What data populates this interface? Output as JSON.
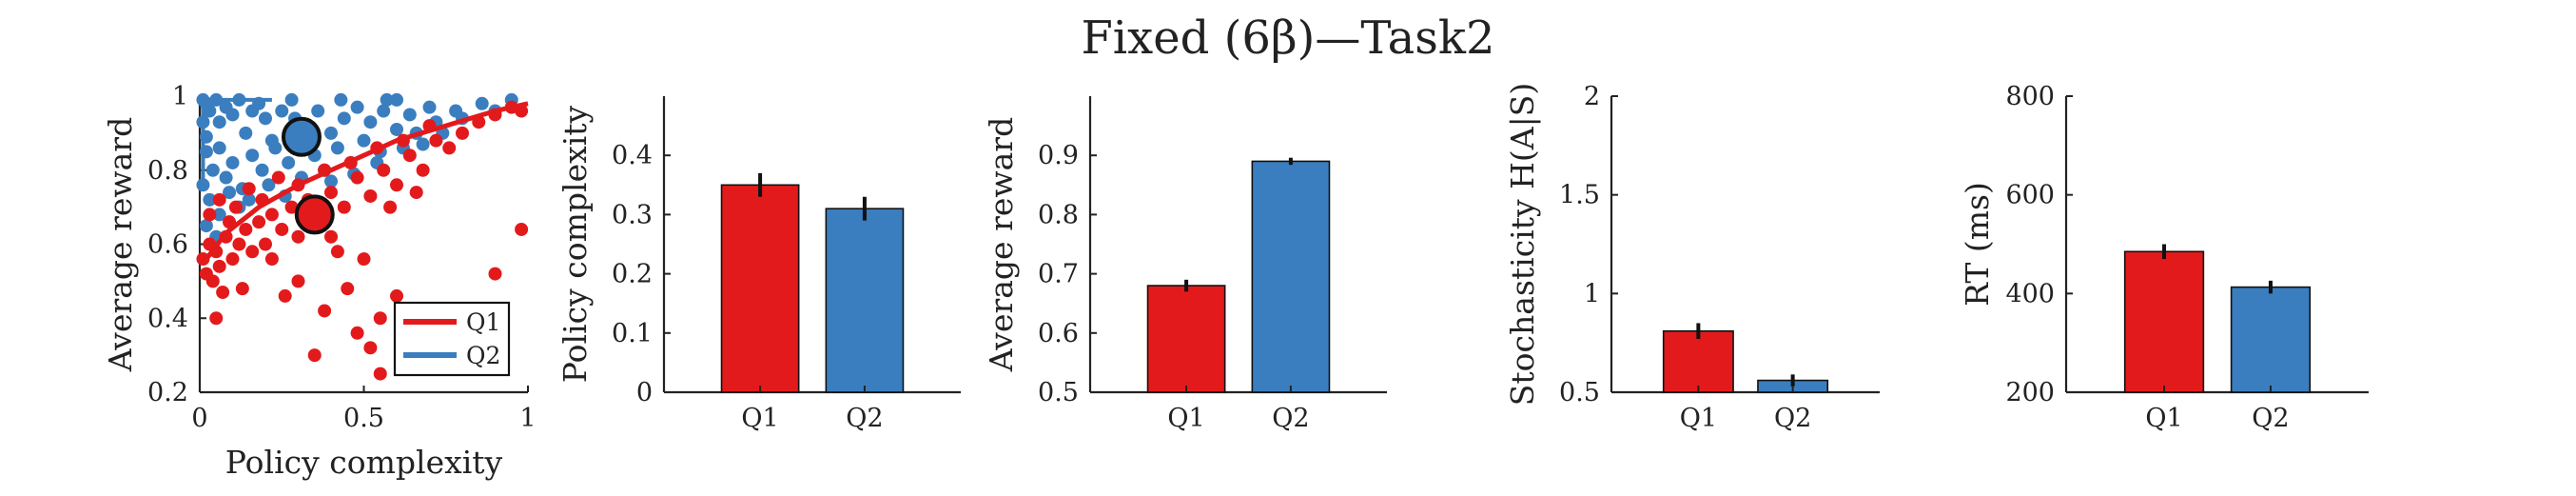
{
  "figure": {
    "title": "Fixed (6β)—Task2"
  },
  "colors": {
    "Q1": "#e31a1c",
    "Q2": "#3a7ebf"
  },
  "chart_data": [
    {
      "type": "scatter",
      "xlabel": "Policy complexity",
      "ylabel": "Average reward",
      "xlim": [
        0,
        1
      ],
      "ylim": [
        0.2,
        1
      ],
      "xticks": [
        "0",
        "0.5",
        "1"
      ],
      "yticks": [
        "0.2",
        "0.4",
        "0.6",
        "0.8",
        "1"
      ],
      "legend": {
        "position": "bottom-right",
        "entries": [
          "Q1",
          "Q2"
        ]
      },
      "series": [
        {
          "name": "Q2",
          "points": [
            [
              0.01,
              0.99
            ],
            [
              0.02,
              0.98
            ],
            [
              0.03,
              0.96
            ],
            [
              0.05,
              0.99
            ],
            [
              0.06,
              0.93
            ],
            [
              0.08,
              0.97
            ],
            [
              0.1,
              0.95
            ],
            [
              0.12,
              0.99
            ],
            [
              0.14,
              0.9
            ],
            [
              0.16,
              0.96
            ],
            [
              0.18,
              0.98
            ],
            [
              0.2,
              0.94
            ],
            [
              0.22,
              0.88
            ],
            [
              0.25,
              0.96
            ],
            [
              0.28,
              0.99
            ],
            [
              0.32,
              0.92
            ],
            [
              0.36,
              0.96
            ],
            [
              0.4,
              0.9
            ],
            [
              0.44,
              0.94
            ],
            [
              0.48,
              0.97
            ],
            [
              0.52,
              0.93
            ],
            [
              0.56,
              0.96
            ],
            [
              0.6,
              0.99
            ],
            [
              0.64,
              0.95
            ],
            [
              0.7,
              0.97
            ],
            [
              0.78,
              0.96
            ],
            [
              0.86,
              0.98
            ],
            [
              0.95,
              0.99
            ],
            [
              0.02,
              0.85
            ],
            [
              0.04,
              0.8
            ],
            [
              0.06,
              0.86
            ],
            [
              0.08,
              0.78
            ],
            [
              0.1,
              0.82
            ],
            [
              0.13,
              0.75
            ],
            [
              0.16,
              0.84
            ],
            [
              0.19,
              0.8
            ],
            [
              0.23,
              0.86
            ],
            [
              0.27,
              0.82
            ],
            [
              0.31,
              0.78
            ],
            [
              0.35,
              0.84
            ],
            [
              0.38,
              0.8
            ],
            [
              0.42,
              0.86
            ],
            [
              0.46,
              0.82
            ],
            [
              0.5,
              0.88
            ],
            [
              0.55,
              0.85
            ],
            [
              0.6,
              0.91
            ],
            [
              0.66,
              0.9
            ],
            [
              0.72,
              0.93
            ],
            [
              0.03,
              0.72
            ],
            [
              0.06,
              0.68
            ],
            [
              0.09,
              0.74
            ],
            [
              0.12,
              0.7
            ],
            [
              0.02,
              0.65
            ],
            [
              0.05,
              0.62
            ],
            [
              0.15,
              0.72
            ],
            [
              0.21,
              0.76
            ],
            [
              0.26,
              0.73
            ],
            [
              0.33,
              0.7
            ],
            [
              0.4,
              0.77
            ],
            [
              0.47,
              0.79
            ],
            [
              0.54,
              0.82
            ],
            [
              0.62,
              0.86
            ],
            [
              0.68,
              0.87
            ],
            [
              0.74,
              0.9
            ],
            [
              0.8,
              0.94
            ],
            [
              0.9,
              0.96
            ],
            [
              0.01,
              0.93
            ],
            [
              0.02,
              0.89
            ],
            [
              0.01,
              0.76
            ],
            [
              0.29,
              0.94
            ],
            [
              0.43,
              0.99
            ],
            [
              0.57,
              0.99
            ]
          ],
          "mean": [
            0.31,
            0.89
          ]
        },
        {
          "name": "Q1",
          "points": [
            [
              0.01,
              0.56
            ],
            [
              0.02,
              0.52
            ],
            [
              0.03,
              0.6
            ],
            [
              0.04,
              0.5
            ],
            [
              0.05,
              0.58
            ],
            [
              0.06,
              0.54
            ],
            [
              0.07,
              0.47
            ],
            [
              0.08,
              0.62
            ],
            [
              0.1,
              0.56
            ],
            [
              0.12,
              0.6
            ],
            [
              0.14,
              0.64
            ],
            [
              0.16,
              0.58
            ],
            [
              0.18,
              0.66
            ],
            [
              0.2,
              0.6
            ],
            [
              0.22,
              0.68
            ],
            [
              0.25,
              0.64
            ],
            [
              0.28,
              0.7
            ],
            [
              0.3,
              0.62
            ],
            [
              0.33,
              0.72
            ],
            [
              0.36,
              0.66
            ],
            [
              0.4,
              0.74
            ],
            [
              0.44,
              0.7
            ],
            [
              0.48,
              0.78
            ],
            [
              0.52,
              0.73
            ],
            [
              0.56,
              0.8
            ],
            [
              0.6,
              0.76
            ],
            [
              0.64,
              0.84
            ],
            [
              0.68,
              0.8
            ],
            [
              0.72,
              0.88
            ],
            [
              0.76,
              0.86
            ],
            [
              0.8,
              0.9
            ],
            [
              0.85,
              0.93
            ],
            [
              0.9,
              0.95
            ],
            [
              0.95,
              0.97
            ],
            [
              0.98,
              0.96
            ],
            [
              0.03,
              0.68
            ],
            [
              0.06,
              0.72
            ],
            [
              0.09,
              0.66
            ],
            [
              0.11,
              0.7
            ],
            [
              0.15,
              0.75
            ],
            [
              0.19,
              0.72
            ],
            [
              0.24,
              0.78
            ],
            [
              0.3,
              0.76
            ],
            [
              0.38,
              0.8
            ],
            [
              0.46,
              0.82
            ],
            [
              0.54,
              0.86
            ],
            [
              0.62,
              0.88
            ],
            [
              0.7,
              0.92
            ],
            [
              0.05,
              0.4
            ],
            [
              0.3,
              0.5
            ],
            [
              0.38,
              0.42
            ],
            [
              0.42,
              0.58
            ],
            [
              0.45,
              0.48
            ],
            [
              0.5,
              0.56
            ],
            [
              0.55,
              0.4
            ],
            [
              0.6,
              0.46
            ],
            [
              0.48,
              0.36
            ],
            [
              0.52,
              0.32
            ],
            [
              0.35,
              0.3
            ],
            [
              0.55,
              0.25
            ],
            [
              0.9,
              0.52
            ],
            [
              0.98,
              0.64
            ],
            [
              0.13,
              0.48
            ],
            [
              0.22,
              0.56
            ],
            [
              0.26,
              0.46
            ],
            [
              0.4,
              0.62
            ],
            [
              0.58,
              0.7
            ],
            [
              0.66,
              0.74
            ]
          ],
          "curve": [
            [
              0.02,
              0.56
            ],
            [
              0.08,
              0.63
            ],
            [
              0.18,
              0.7
            ],
            [
              0.3,
              0.76
            ],
            [
              0.45,
              0.82
            ],
            [
              0.6,
              0.88
            ],
            [
              0.75,
              0.92
            ],
            [
              0.9,
              0.96
            ],
            [
              1.0,
              0.98
            ]
          ],
          "mean": [
            0.35,
            0.68
          ]
        }
      ]
    },
    {
      "type": "bar",
      "ylabel": "Policy complexity",
      "categories": [
        "Q1",
        "Q2"
      ],
      "values": [
        0.35,
        0.31
      ],
      "errors": [
        0.02,
        0.02
      ],
      "ylim": [
        0,
        0.5
      ],
      "yticks": [
        "0",
        "0.1",
        "0.2",
        "0.3",
        "0.4"
      ]
    },
    {
      "type": "bar",
      "ylabel": "Average reward",
      "categories": [
        "Q1",
        "Q2"
      ],
      "values": [
        0.68,
        0.89
      ],
      "errors": [
        0.01,
        0.006
      ],
      "ylim": [
        0.5,
        1.0
      ],
      "yticks": [
        "0.5",
        "0.6",
        "0.7",
        "0.8",
        "0.9"
      ]
    },
    {
      "type": "bar",
      "ylabel": "Stochasticity H(A|S)",
      "categories": [
        "Q1",
        "Q2"
      ],
      "values": [
        0.81,
        0.56
      ],
      "errors": [
        0.04,
        0.03
      ],
      "ylim": [
        0.5,
        2
      ],
      "yticks": [
        "0.5",
        "1",
        "1.5",
        "2"
      ]
    },
    {
      "type": "bar",
      "ylabel": "RT (ms)",
      "categories": [
        "Q1",
        "Q2"
      ],
      "values": [
        485,
        413
      ],
      "errors": [
        15,
        13
      ],
      "ylim": [
        200,
        800
      ],
      "yticks": [
        "200",
        "400",
        "600",
        "800"
      ]
    }
  ]
}
